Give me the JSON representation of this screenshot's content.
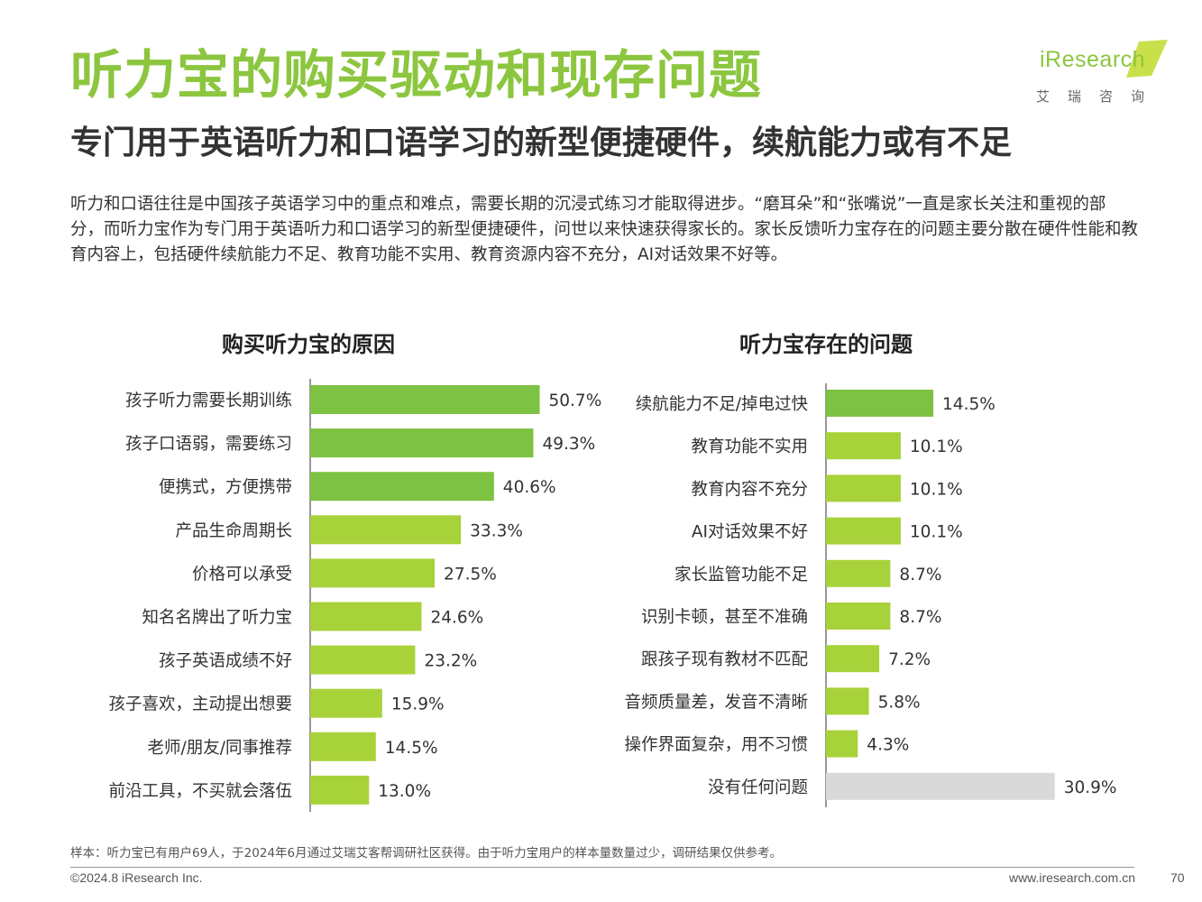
{
  "header": {
    "title": "听力宝的购买驱动和现存问题",
    "subtitle": "专门用于英语听力和口语学习的新型便捷硬件，续航能力或有不足",
    "description": "听力和口语往往是中国孩子英语学习中的重点和难点，需要长期的沉浸式练习才能取得进步。“磨耳朵”和“张嘴说”一直是家长关注和重视的部分，而听力宝作为专门用于英语听力和口语学习的新型便捷硬件，问世以来快速获得家长的。家长反馈听力宝存在的问题主要分散在硬件性能和教育内容上，包括硬件续航能力不足、教育功能不实用、教育资源内容不充分，AI对话效果不好等。"
  },
  "logo": {
    "brand": "iResearch",
    "sub": "艾瑞咨询"
  },
  "colors": {
    "title_green": "#8cc63f",
    "bar_dark": "#7dc242",
    "bar_light": "#a8d23a",
    "bar_gray": "#d9d9d9"
  },
  "chart_data": [
    {
      "type": "bar",
      "orientation": "horizontal",
      "title": "购买听力宝的原因",
      "categories": [
        "孩子听力需要长期训练",
        "孩子口语弱，需要练习",
        "便携式，方便携带",
        "产品生命周期长",
        "价格可以承受",
        "知名名牌出了听力宝",
        "孩子英语成绩不好",
        "孩子喜欢，主动提出想要",
        "老师/朋友/同事推荐",
        "前沿工具，不买就会落伍"
      ],
      "values": [
        50.7,
        49.3,
        40.6,
        33.3,
        27.5,
        24.6,
        23.2,
        15.9,
        14.5,
        13.0
      ],
      "labels": [
        "50.7%",
        "49.3%",
        "40.6%",
        "33.3%",
        "27.5%",
        "24.6%",
        "23.2%",
        "15.9%",
        "14.5%",
        "13.0%"
      ],
      "unit": "%",
      "highlight_top": 3,
      "xlim": [
        0,
        60
      ]
    },
    {
      "type": "bar",
      "orientation": "horizontal",
      "title": "听力宝存在的问题",
      "categories": [
        "续航能力不足/掉电过快",
        "教育功能不实用",
        "教育内容不充分",
        "AI对话效果不好",
        "家长监管功能不足",
        "识别卡顿，甚至不准确",
        "跟孩子现有教材不匹配",
        "音频质量差，发音不清晰",
        "操作界面复杂，用不习惯",
        "没有任何问题"
      ],
      "values": [
        14.5,
        10.1,
        10.1,
        10.1,
        8.7,
        8.7,
        7.2,
        5.8,
        4.3,
        30.9
      ],
      "labels": [
        "14.5%",
        "10.1%",
        "10.1%",
        "10.1%",
        "8.7%",
        "8.7%",
        "7.2%",
        "5.8%",
        "4.3%",
        "30.9%"
      ],
      "unit": "%",
      "highlight_top": 1,
      "gray_last": true,
      "xlim": [
        0,
        35
      ]
    }
  ],
  "footer": {
    "note": "样本：听力宝已有用户69人，于2024年6月通过艾瑞艾客帮调研社区获得。由于听力宝用户的样本量数量过少，调研结果仅供参考。",
    "copyright": "©2024.8 iResearch Inc.",
    "website": "www.iresearch.com.cn",
    "page": "70"
  }
}
